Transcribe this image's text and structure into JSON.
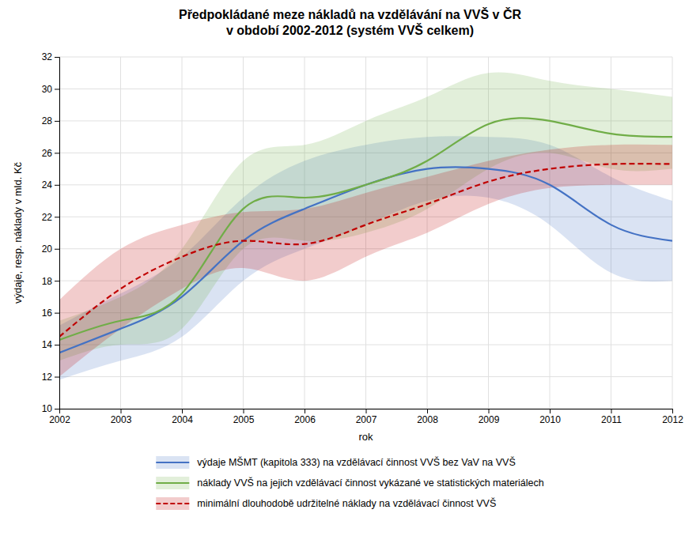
{
  "chart_data": {
    "type": "line",
    "title": "Předpokládané meze nákladů na vzdělávání na VVŠ v ČR\nv období 2002-2012 (systém VVŠ celkem)",
    "x_label": "rok",
    "y_label": "výdaje, resp. náklady v mld. Kč",
    "x": [
      2002,
      2003,
      2004,
      2005,
      2006,
      2007,
      2008,
      2009,
      2010,
      2011,
      2012
    ],
    "xlim": [
      2002,
      2012
    ],
    "xticks": [
      2002,
      2003,
      2004,
      2005,
      2006,
      2007,
      2008,
      2009,
      2010,
      2011,
      2012
    ],
    "ylim": [
      10,
      32
    ],
    "yticks": [
      10,
      12,
      14,
      16,
      18,
      20,
      22,
      24,
      26,
      28,
      30,
      32
    ],
    "grid": true,
    "legend": "bottom",
    "series": [
      {
        "name": "výdaje MŠMT (kapitola 333) na vzdělávací činnost VVŠ bez VaV na VVŠ",
        "color": "#4472C4",
        "line_style": "solid",
        "values": [
          13.5,
          15.0,
          17.0,
          20.5,
          22.5,
          24.0,
          25.0,
          25.0,
          24.0,
          21.5,
          20.5
        ],
        "upper": [
          15.2,
          17.2,
          19.5,
          23.2,
          25.5,
          26.5,
          27.0,
          27.0,
          26.5,
          24.5,
          23.0
        ],
        "lower": [
          11.8,
          13.0,
          14.5,
          18.0,
          20.0,
          21.5,
          23.0,
          23.2,
          21.5,
          18.5,
          18.0
        ]
      },
      {
        "name": "náklady VVŠ na jejich vzdělávací činnost vykázané ve statistických materiálech",
        "color": "#70AD47",
        "line_style": "solid",
        "values": [
          14.3,
          15.5,
          17.2,
          22.5,
          23.2,
          24.0,
          25.5,
          27.8,
          28.0,
          27.2,
          27.0
        ],
        "upper": [
          15.5,
          17.0,
          20.0,
          25.5,
          26.5,
          28.0,
          29.5,
          31.0,
          30.5,
          30.0,
          29.5
        ],
        "lower": [
          13.0,
          14.0,
          15.0,
          20.0,
          20.5,
          21.0,
          22.5,
          25.0,
          26.0,
          25.0,
          25.0
        ]
      },
      {
        "name": "minimální dlouhodobě udržitelné náklady na vzdělávací činnost VVŠ",
        "color": "#C00000",
        "line_style": "dashed",
        "values": [
          14.5,
          17.5,
          19.5,
          20.5,
          20.3,
          21.5,
          22.8,
          24.2,
          25.0,
          25.3,
          25.3
        ],
        "upper": [
          16.8,
          20.0,
          21.5,
          22.3,
          22.5,
          23.5,
          24.5,
          25.5,
          26.2,
          26.5,
          26.5
        ],
        "lower": [
          12.0,
          15.0,
          17.5,
          18.8,
          18.0,
          19.5,
          21.0,
          22.8,
          23.8,
          24.0,
          24.0
        ]
      }
    ]
  }
}
